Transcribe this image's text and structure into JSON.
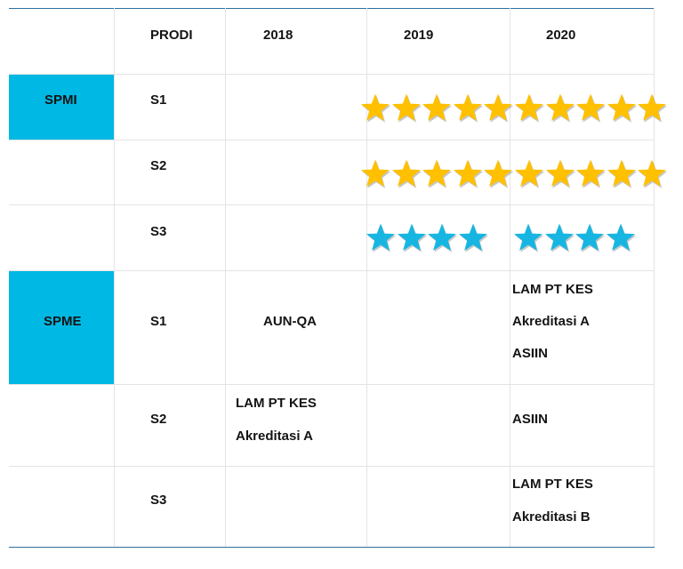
{
  "colors": {
    "category_fill": "#00b8e4",
    "gold_star": "#ffc000",
    "blue_star": "#17b6e2",
    "table_border": "#2f6f9e",
    "grid_line": "#e4e4e4"
  },
  "header": {
    "prodi": "PRODI",
    "y2018": "2018",
    "y2019": "2019",
    "y2020": "2020"
  },
  "spmi": {
    "label": "SPMI",
    "rows": [
      {
        "prodi": "S1",
        "stars_2019": 5,
        "stars_2020": 5,
        "star_color": "gold"
      },
      {
        "prodi": "S2",
        "stars_2019": 5,
        "stars_2020": 5,
        "star_color": "gold"
      },
      {
        "prodi": "S3",
        "stars_2019": 4,
        "stars_2020": 4,
        "star_color": "blue"
      }
    ]
  },
  "spme": {
    "label": "SPME",
    "rows": [
      {
        "prodi": "S1",
        "y2018": [
          "AUN-QA"
        ],
        "y2019": [],
        "y2020": [
          "LAM PT KES",
          "Akreditasi A",
          "ASIIN"
        ]
      },
      {
        "prodi": "S2",
        "y2018": [
          "LAM PT KES",
          "Akreditasi A"
        ],
        "y2019": [],
        "y2020": [
          "ASIIN"
        ]
      },
      {
        "prodi": "S3",
        "y2018": [],
        "y2019": [],
        "y2020": [
          "LAM PT KES",
          "Akreditasi B"
        ]
      }
    ]
  }
}
